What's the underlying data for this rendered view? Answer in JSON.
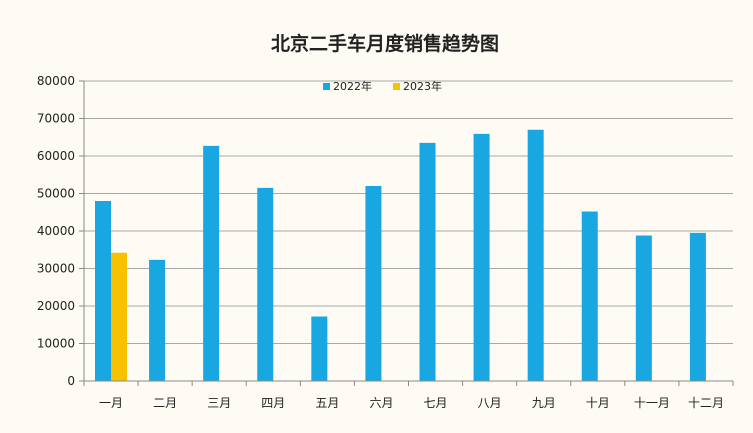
{
  "chart_data": {
    "type": "bar",
    "title": "北京二手车月度销售趋势图",
    "categories": [
      "一月",
      "二月",
      "三月",
      "四月",
      "五月",
      "六月",
      "七月",
      "八月",
      "九月",
      "十月",
      "十一月",
      "十二月"
    ],
    "series": [
      {
        "name": "2022年",
        "color": "#18a7e0",
        "values": [
          48000,
          32300,
          62700,
          51500,
          17200,
          52000,
          63500,
          65900,
          67000,
          45200,
          38800,
          39500
        ]
      },
      {
        "name": "2023年",
        "color": "#f7c200",
        "values": [
          34200,
          null,
          null,
          null,
          null,
          null,
          null,
          null,
          null,
          null,
          null,
          null
        ]
      }
    ],
    "y_ticks": [
      "0",
      "10000",
      "20000",
      "30000",
      "40000",
      "50000",
      "60000",
      "70000",
      "80000"
    ],
    "ylim": [
      0,
      80000
    ],
    "grid": true,
    "legend_position": "top-center",
    "xlabel": "",
    "ylabel": ""
  }
}
